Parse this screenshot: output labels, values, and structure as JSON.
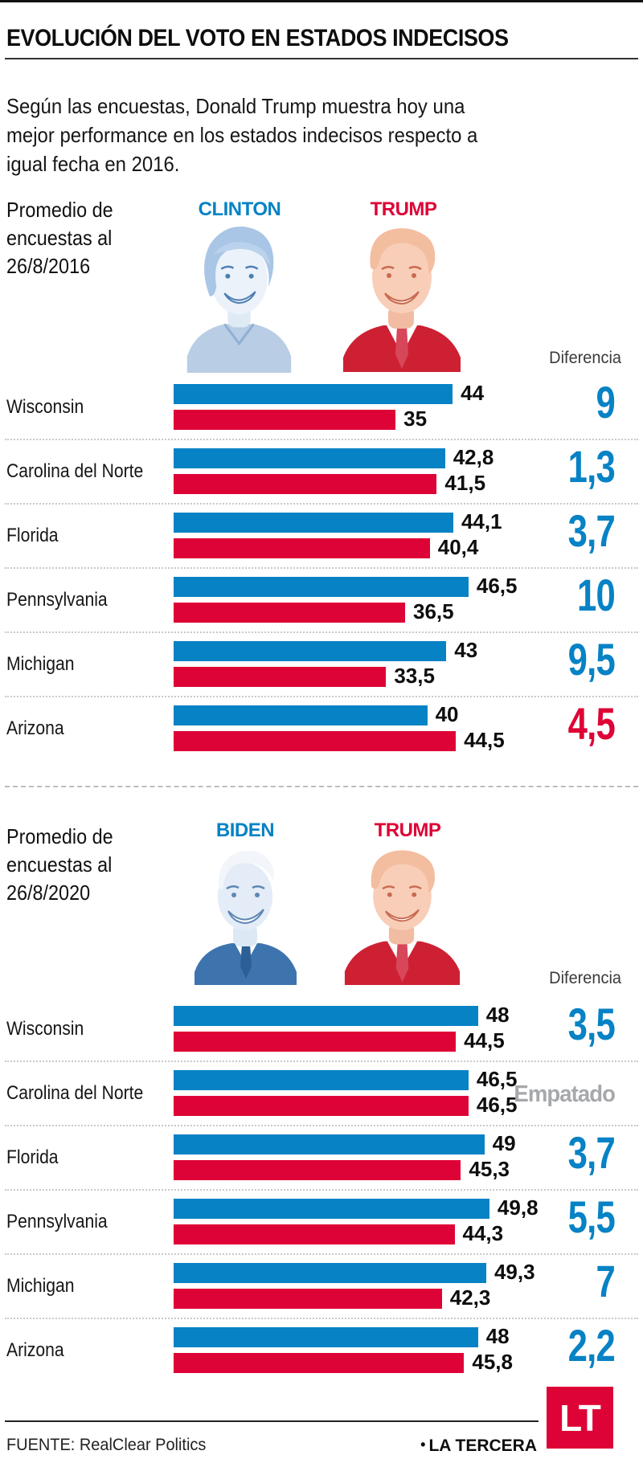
{
  "page": {
    "title": "EVOLUCIÓN DEL VOTO EN ESTADOS INDECISOS",
    "intro": "Según las encuestas, Donald Trump muestra hoy una\nmejor performance en los estados indecisos respecto a\nigual fecha en 2016."
  },
  "colors": {
    "blue": "#0782C5",
    "red": "#DE0336",
    "tie_gray": "#A6A8AB",
    "text": "#1A1A1A"
  },
  "chart_data": [
    {
      "type": "bar",
      "period_label": "Promedio de\nencuestas al\n26/8/2016",
      "diff_header": "Diferencia",
      "candidates": [
        {
          "name": "CLINTON",
          "color": "#0782C5"
        },
        {
          "name": "TRUMP",
          "color": "#DE0336"
        }
      ],
      "categories": [
        "Wisconsin",
        "Carolina del Norte",
        "Florida",
        "Pennsylvania",
        "Michigan",
        "Arizona"
      ],
      "series": [
        {
          "name": "CLINTON",
          "values": [
            44,
            42.8,
            44.1,
            46.5,
            43,
            40
          ],
          "labels": [
            "44",
            "42,8",
            "44,1",
            "46,5",
            "43",
            "40"
          ]
        },
        {
          "name": "TRUMP",
          "values": [
            35,
            41.5,
            40.4,
            36.5,
            33.5,
            44.5
          ],
          "labels": [
            "35",
            "41,5",
            "40,4",
            "36,5",
            "33,5",
            "44,5"
          ]
        }
      ],
      "diffs": [
        {
          "label": "9",
          "leader": "CLINTON"
        },
        {
          "label": "1,3",
          "leader": "CLINTON"
        },
        {
          "label": "3,7",
          "leader": "CLINTON"
        },
        {
          "label": "10",
          "leader": "CLINTON"
        },
        {
          "label": "9,5",
          "leader": "CLINTON"
        },
        {
          "label": "4,5",
          "leader": "TRUMP"
        }
      ],
      "xlim": [
        0,
        50
      ],
      "grid": false,
      "legend_position": "top"
    },
    {
      "type": "bar",
      "period_label": "Promedio de\nencuestas al\n26/8/2020",
      "diff_header": "Diferencia",
      "candidates": [
        {
          "name": "BIDEN",
          "color": "#0782C5"
        },
        {
          "name": "TRUMP",
          "color": "#DE0336"
        }
      ],
      "categories": [
        "Wisconsin",
        "Carolina del Norte",
        "Florida",
        "Pennsylvania",
        "Michigan",
        "Arizona"
      ],
      "series": [
        {
          "name": "BIDEN",
          "values": [
            48,
            46.5,
            49,
            49.8,
            49.3,
            48
          ],
          "labels": [
            "48",
            "46,5",
            "49",
            "49,8",
            "49,3",
            "48"
          ]
        },
        {
          "name": "TRUMP",
          "values": [
            44.5,
            46.5,
            45.3,
            44.3,
            42.3,
            45.8
          ],
          "labels": [
            "44,5",
            "46,5",
            "45,3",
            "44,3",
            "42,3",
            "45,8"
          ]
        }
      ],
      "diffs": [
        {
          "label": "3,5",
          "leader": "BIDEN"
        },
        {
          "label": "Empatado",
          "leader": "tie"
        },
        {
          "label": "3,7",
          "leader": "BIDEN"
        },
        {
          "label": "5,5",
          "leader": "BIDEN"
        },
        {
          "label": "7",
          "leader": "BIDEN"
        },
        {
          "label": "2,2",
          "leader": "BIDEN"
        }
      ],
      "xlim": [
        0,
        50
      ],
      "grid": false,
      "legend_position": "top"
    }
  ],
  "footer": {
    "source": "FUENTE: RealClear Politics",
    "brand_bullet": "•",
    "brand": "LA TERCERA",
    "logo_text": "LT",
    "logo_color": "#DE0336"
  }
}
